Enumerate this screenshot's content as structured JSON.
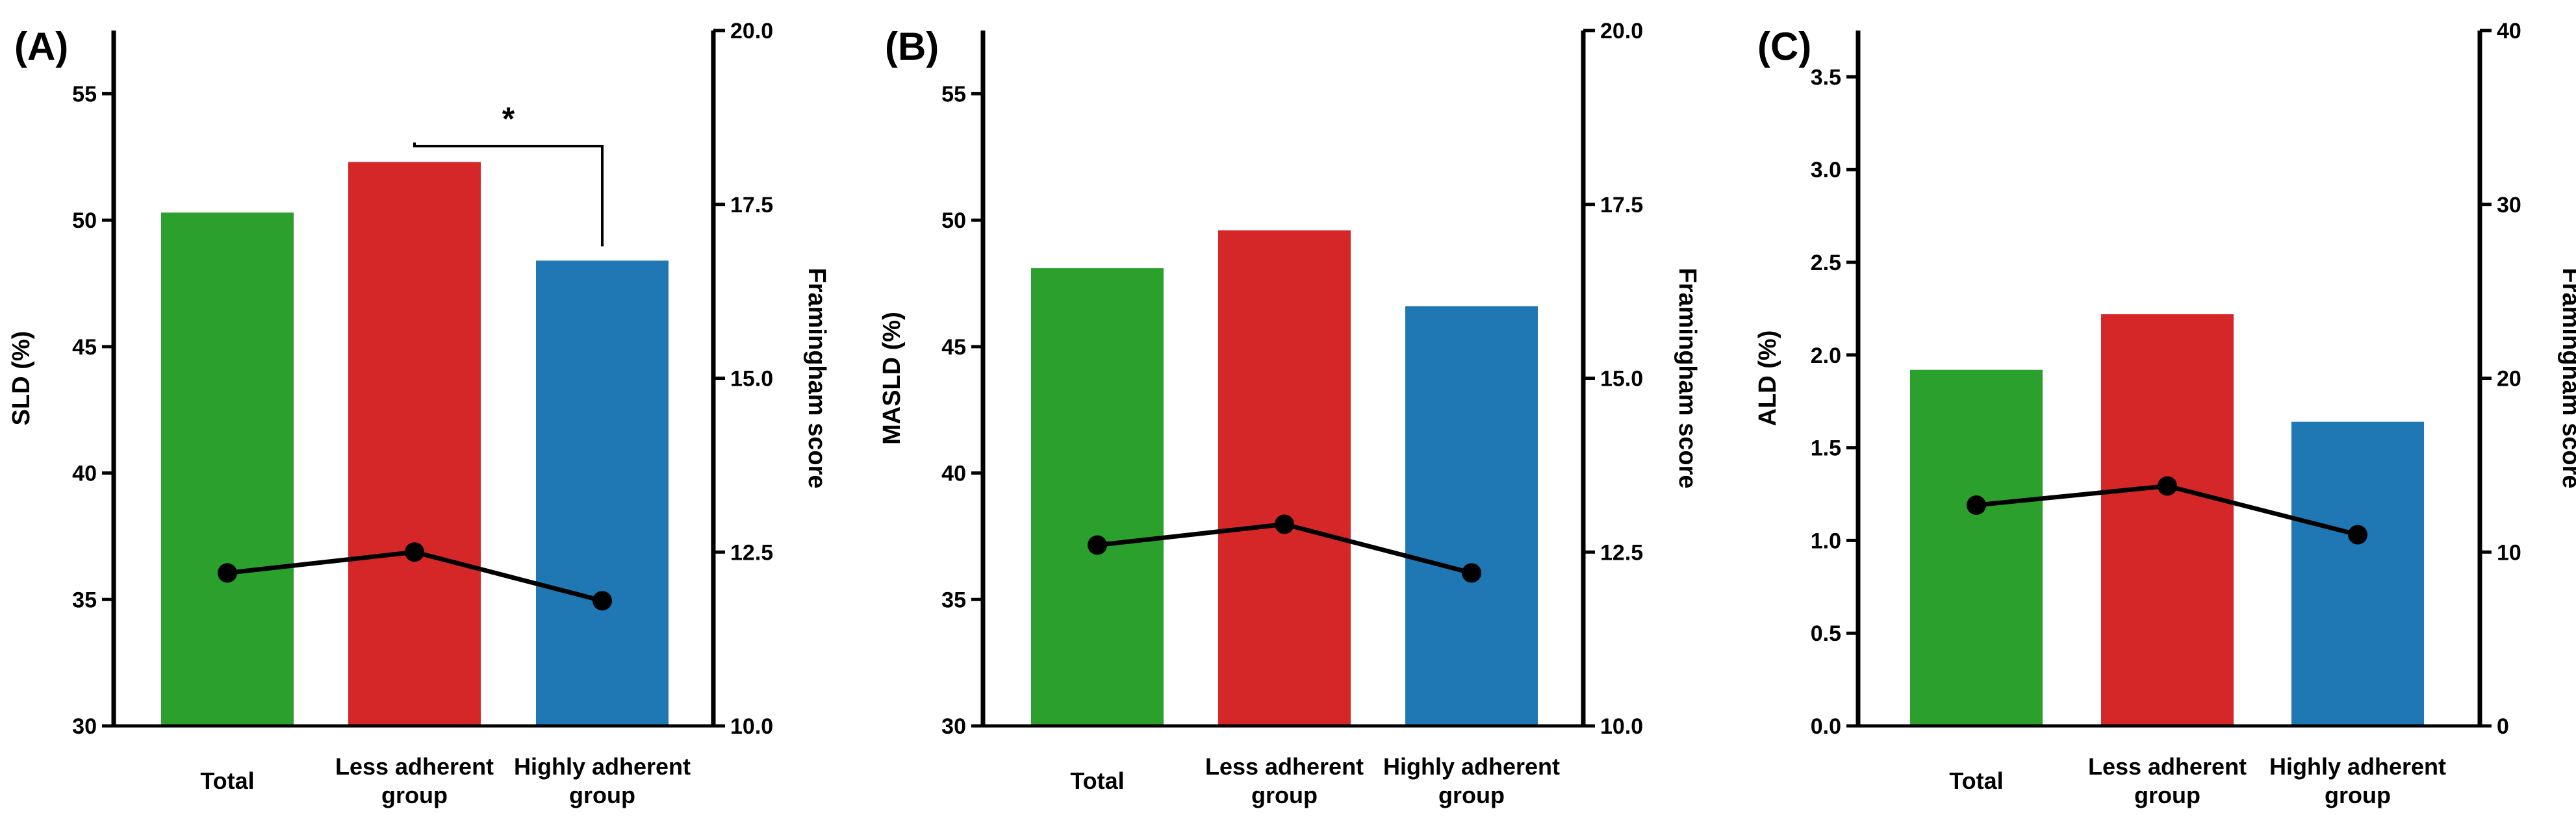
{
  "chart_data": [
    {
      "type": "bar",
      "panel_label": "(A)",
      "categories": [
        "Total",
        "Less adherent\ngroup",
        "Highly adherent\ngroup"
      ],
      "bar_colors": [
        "#2ca02c",
        "#d62728",
        "#1f77b4"
      ],
      "values": [
        50.3,
        52.3,
        48.4
      ],
      "ylabel": "SLD (%)",
      "ylim": [
        30,
        57.5
      ],
      "yticks": [
        "30",
        "35",
        "40",
        "45",
        "50",
        "55"
      ],
      "line": {
        "name": "Framingham score",
        "values": [
          12.2,
          12.5,
          11.8
        ]
      },
      "y2label": "Framingham score",
      "y2lim": [
        10,
        20
      ],
      "y2ticks": [
        "10.0",
        "12.5",
        "15.0",
        "17.5",
        "20.0"
      ],
      "significance": {
        "from": 1,
        "to": 2,
        "label": "*"
      }
    },
    {
      "type": "bar",
      "panel_label": "(B)",
      "categories": [
        "Total",
        "Less adherent\ngroup",
        "Highly adherent\ngroup"
      ],
      "bar_colors": [
        "#2ca02c",
        "#d62728",
        "#1f77b4"
      ],
      "values": [
        48.1,
        49.6,
        46.6
      ],
      "ylabel": "MASLD (%)",
      "ylim": [
        30,
        57.5
      ],
      "yticks": [
        "30",
        "35",
        "40",
        "45",
        "50",
        "55"
      ],
      "line": {
        "name": "Framingham score",
        "values": [
          12.6,
          12.9,
          12.2
        ]
      },
      "y2label": "Framingham score",
      "y2lim": [
        10,
        20
      ],
      "y2ticks": [
        "10.0",
        "12.5",
        "15.0",
        "17.5",
        "20.0"
      ]
    },
    {
      "type": "bar",
      "panel_label": "(C)",
      "categories": [
        "Total",
        "Less adherent\ngroup",
        "Highly adherent\ngroup"
      ],
      "bar_colors": [
        "#2ca02c",
        "#d62728",
        "#1f77b4"
      ],
      "values": [
        1.92,
        2.22,
        1.64
      ],
      "ylabel": "ALD (%)",
      "ylim": [
        0,
        3.75
      ],
      "yticks": [
        "0.0",
        "0.5",
        "1.0",
        "1.5",
        "2.0",
        "2.5",
        "3.0",
        "3.5"
      ],
      "line": {
        "name": "Framingham score",
        "values": [
          12.7,
          13.8,
          11.0
        ]
      },
      "y2label": "Framingham score",
      "y2lim": [
        0,
        40
      ],
      "y2ticks": [
        "0",
        "10",
        "20",
        "30",
        "40"
      ]
    }
  ]
}
